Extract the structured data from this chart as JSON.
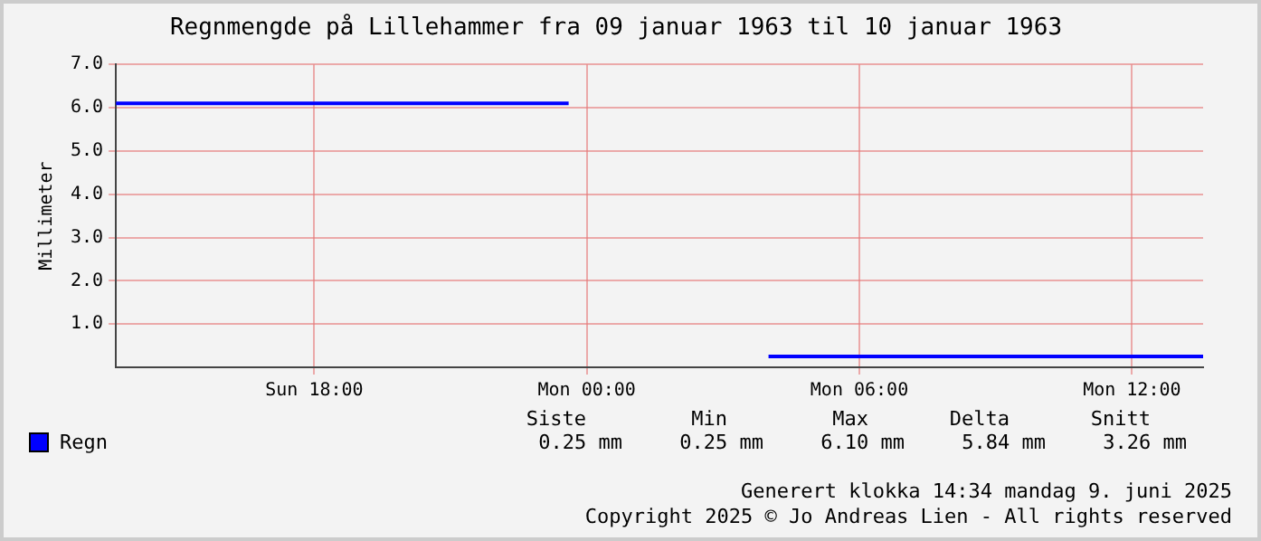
{
  "chart_data": {
    "type": "line",
    "title": "Regnmengde på Lillehammer fra 09 januar 1963 til 10 januar 1963",
    "ylabel": "Millimeter",
    "x": [
      "1963-01-09T13:38",
      "1963-01-09T23:36",
      "1963-01-10T00:00",
      "1963-01-10T04:00",
      "1963-01-10T13:34"
    ],
    "series": [
      {
        "name": "Regn",
        "color": "#0000ff",
        "values": [
          6.1,
          6.1,
          null,
          0.25,
          0.25
        ]
      }
    ],
    "xlim": [
      "1963-01-09T13:38",
      "1963-01-10T13:34"
    ],
    "xticks": [
      {
        "value": "1963-01-09T18:00",
        "label": "Sun 18:00"
      },
      {
        "value": "1963-01-10T00:00",
        "label": "Mon 00:00"
      },
      {
        "value": "1963-01-10T06:00",
        "label": "Mon 06:00"
      },
      {
        "value": "1963-01-10T12:00",
        "label": "Mon 12:00"
      }
    ],
    "ylim": [
      0,
      7
    ],
    "yticks": [
      {
        "value": 1,
        "label": "1.0"
      },
      {
        "value": 2,
        "label": "2.0"
      },
      {
        "value": 3,
        "label": "3.0"
      },
      {
        "value": 4,
        "label": "4.0"
      },
      {
        "value": 5,
        "label": "5.0"
      },
      {
        "value": 6,
        "label": "6.0"
      },
      {
        "value": 7,
        "label": "7.0"
      }
    ],
    "grid": true,
    "legend": "bottom",
    "annotations": [
      "Siste",
      "Min",
      "Max",
      "Delta",
      "Snitt",
      "0.25 mm",
      "0.25 mm",
      "6.10 mm",
      "5.84 mm",
      "3.26 mm",
      "Generert klokka 14:34 mandag 9. juni 2025",
      "Copyright 2025 © Jo Andreas Lien - All rights reserved"
    ]
  }
}
